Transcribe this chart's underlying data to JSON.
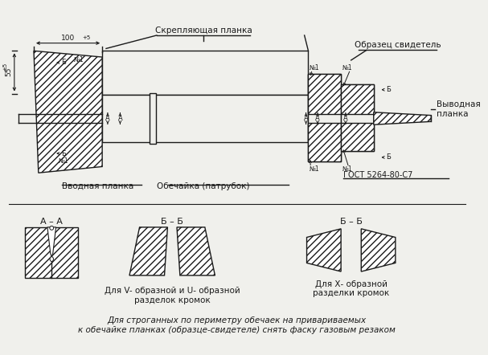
{
  "bg_color": "#f0f0ec",
  "line_color": "#1a1a1a",
  "title_top": "Скрепляющая планка",
  "label_vvodnaya": "Вводная планка",
  "label_obechajka": "Обечайка (патрубок)",
  "label_obrazec": "Образец свидетель",
  "label_vyvodnaya": "Выводная\nпланка",
  "label_gost": "ГОСТ 5264-80-С7",
  "label_dim1": "100",
  "label_dim1_sup": "+5",
  "label_dim2": "55",
  "label_dim2_sup": "±5",
  "label_AA": "А – А",
  "label_BB1": "Б – Б",
  "label_BB2": "Б – Б",
  "label_VU": "Для V- образной и U- образной\nразделок кромок",
  "label_X": "Для Х- образной\nразделки кромок",
  "label_bottom": "Для строганных по периметру обечаек на привариваемых\nк обечайке планках (образце-свидетеле) снять фаску газовым резаком",
  "label_A": "А",
  "label_B": "Б",
  "label_N1": "№1"
}
